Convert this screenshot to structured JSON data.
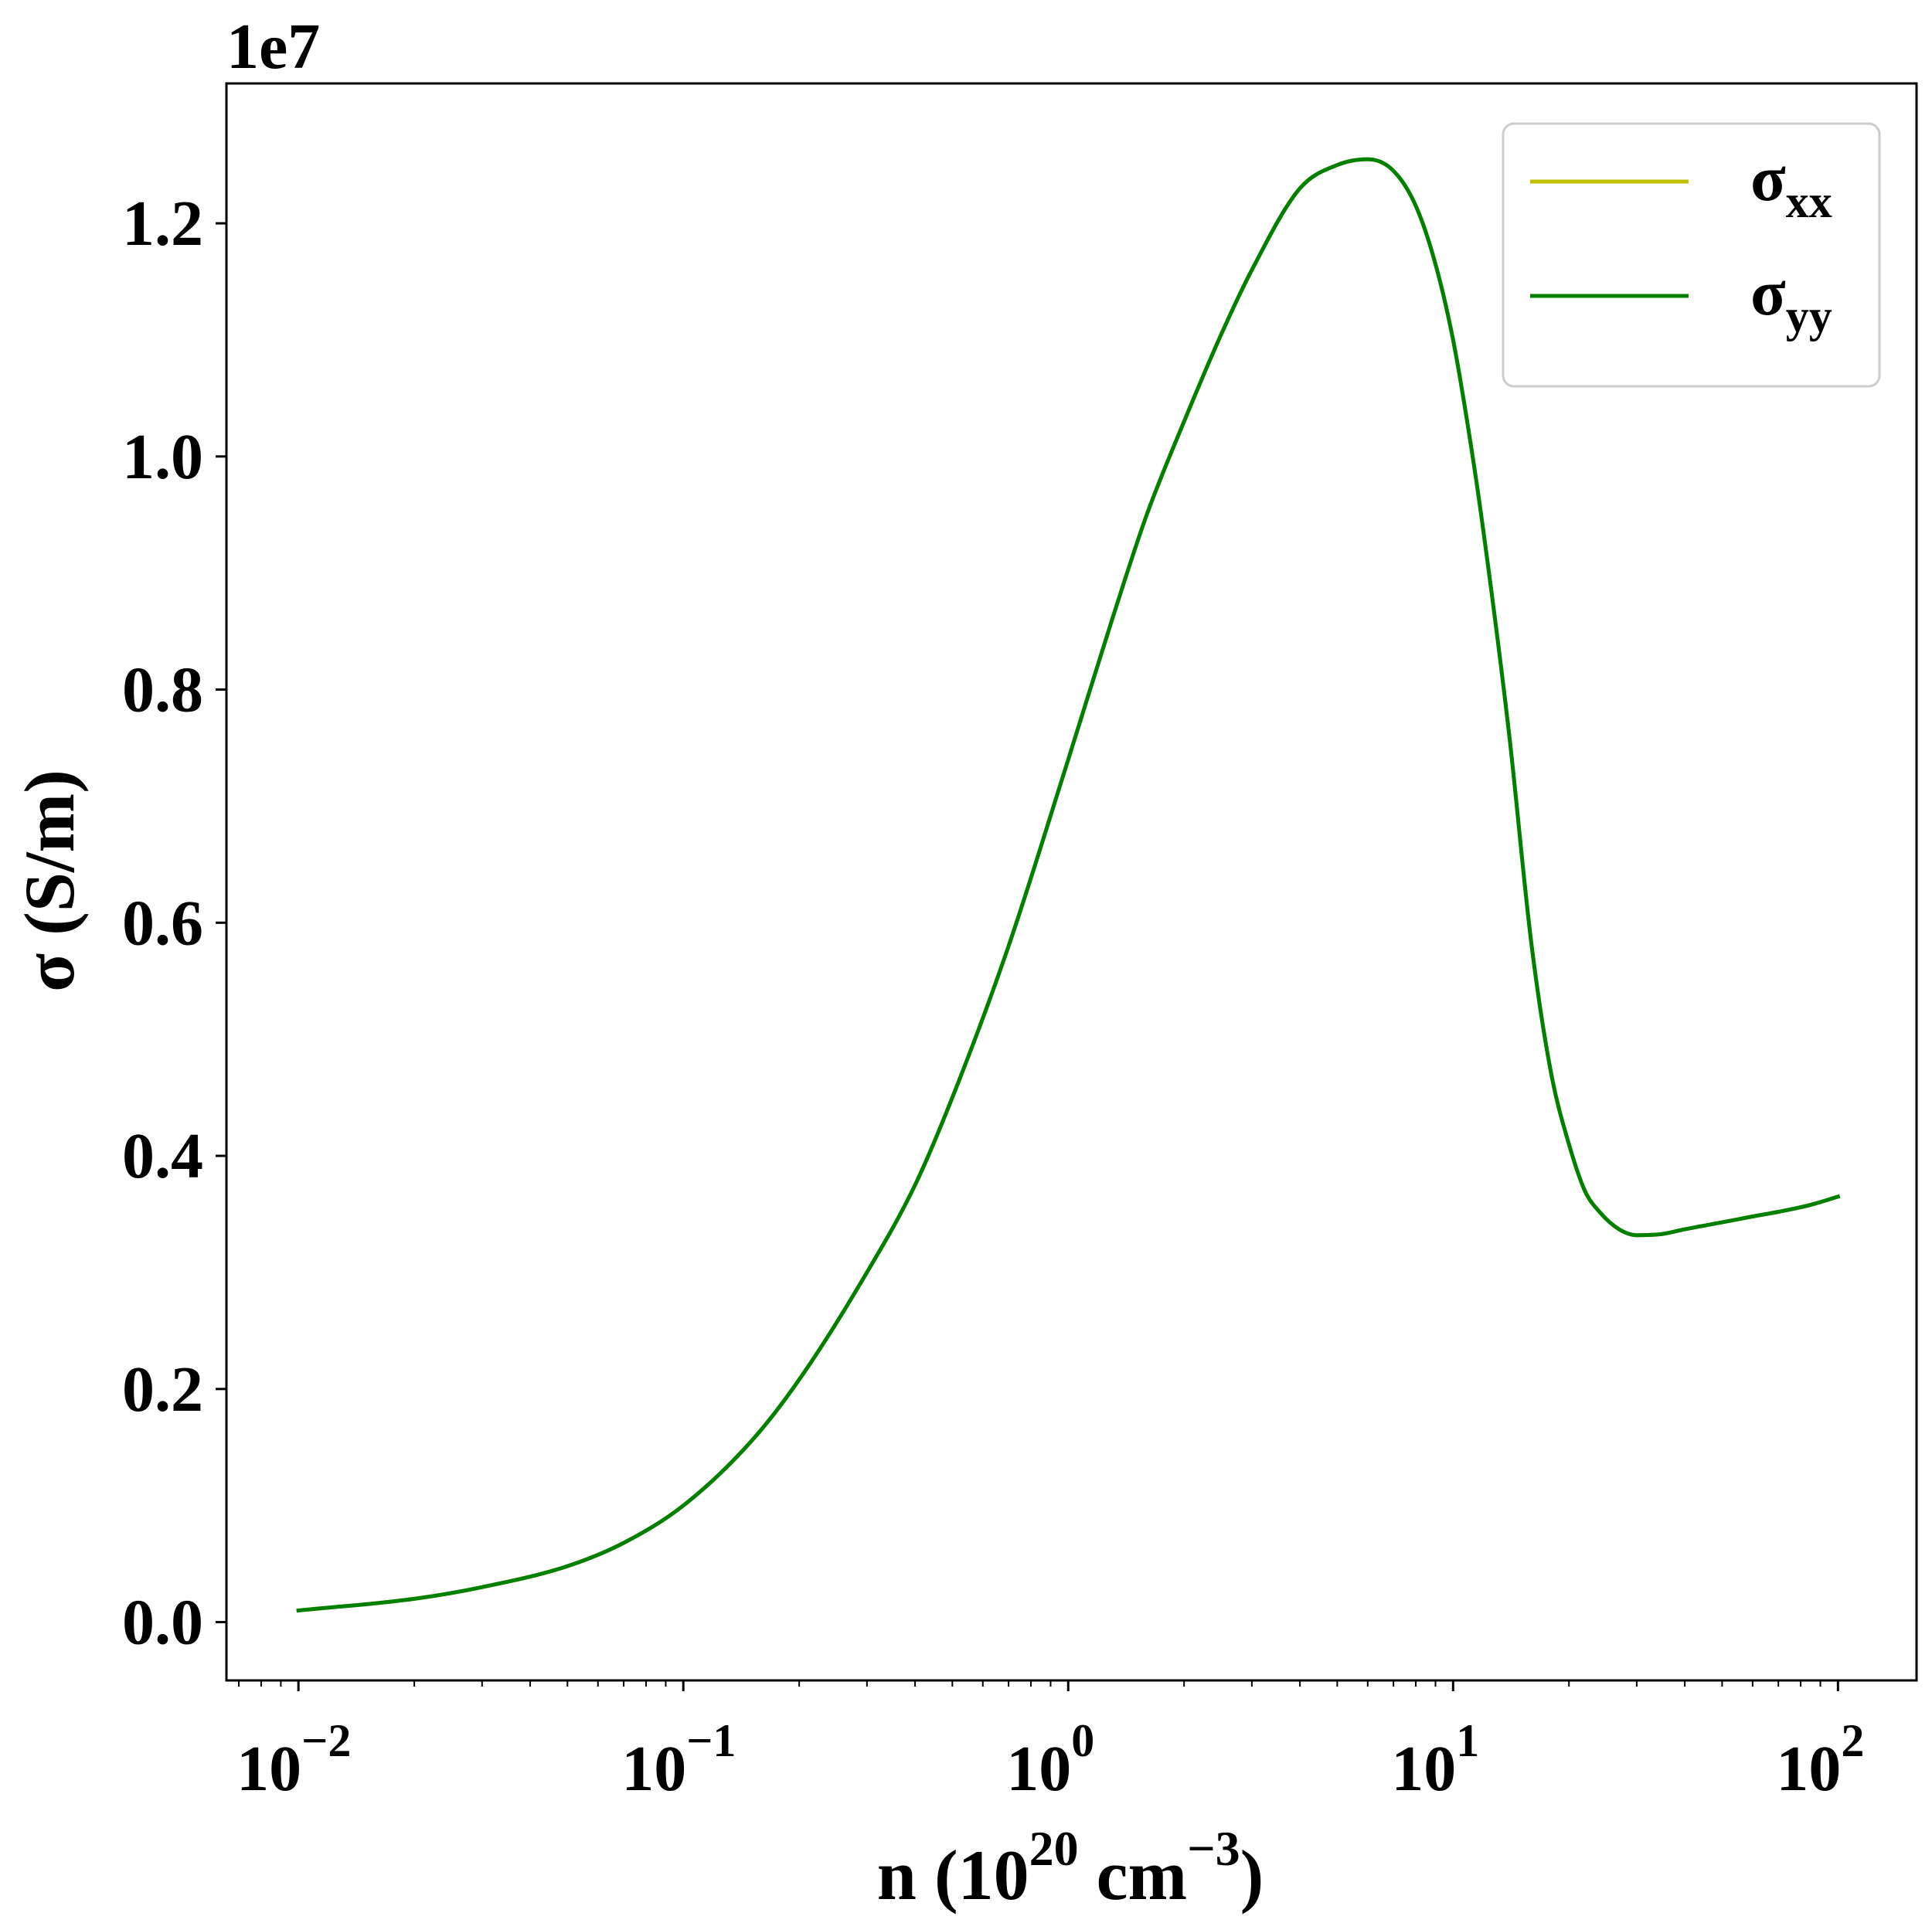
{
  "chart_data": {
    "type": "line",
    "title": "",
    "xlabel": "n (10",
    "xlabel_sup1": "20",
    "xlabel_mid": " cm",
    "xlabel_sup2": "−3",
    "xlabel_end": ")",
    "ylabel": "σ (S/m)",
    "y_offset_label": "1e7",
    "x_scale": "log",
    "xlim": [
      0.0065,
      160
    ],
    "ylim": [
      -0.05,
      1.32
    ],
    "y_scale_factor": 10000000,
    "y_ticks": [
      0.0,
      0.2,
      0.4,
      0.6,
      0.8,
      1.0,
      1.2
    ],
    "y_tick_labels": [
      "0.0",
      "0.2",
      "0.4",
      "0.6",
      "0.8",
      "1.0",
      "1.2"
    ],
    "x_ticks": [
      0.01,
      0.1,
      1,
      10,
      100
    ],
    "x_tick_labels": [
      {
        "base": "10",
        "exp": "−2"
      },
      {
        "base": "10",
        "exp": "−1"
      },
      {
        "base": "10",
        "exp": "0"
      },
      {
        "base": "10",
        "exp": "1"
      },
      {
        "base": "10",
        "exp": "2"
      }
    ],
    "grid": false,
    "legend_position": "top-right",
    "series": [
      {
        "name": "σxx",
        "legend_label": {
          "main": "σ",
          "sub": "xx"
        },
        "color": "#bfbf00",
        "x": [
          0.01,
          0.02,
          0.03,
          0.05,
          0.07,
          0.1,
          0.15,
          0.2,
          0.3,
          0.4,
          0.5,
          0.7,
          1.0,
          1.3,
          1.6,
          2.0,
          2.5,
          3.0,
          4.0,
          5.0,
          6.0,
          7.0,
          8.0,
          9.0,
          10.0,
          11.0,
          12.0,
          14.0,
          16.0,
          18.0,
          20.0,
          22.0,
          24.0,
          27.0,
          30.0,
          35.0,
          40.0,
          50.0,
          60.0,
          70.0,
          85.0,
          100.0
        ],
        "y": [
          0.01,
          0.02,
          0.03,
          0.048,
          0.068,
          0.1,
          0.155,
          0.208,
          0.3,
          0.375,
          0.45,
          0.58,
          0.74,
          0.86,
          0.95,
          1.03,
          1.105,
          1.16,
          1.23,
          1.25,
          1.255,
          1.245,
          1.215,
          1.165,
          1.1,
          1.02,
          0.935,
          0.76,
          0.58,
          0.47,
          0.41,
          0.37,
          0.352,
          0.337,
          0.332,
          0.333,
          0.337,
          0.343,
          0.348,
          0.352,
          0.358,
          0.365
        ]
      },
      {
        "name": "σyy",
        "legend_label": {
          "main": "σ",
          "sub": "yy"
        },
        "color": "#008000",
        "x": [
          0.01,
          0.02,
          0.03,
          0.05,
          0.07,
          0.1,
          0.15,
          0.2,
          0.3,
          0.4,
          0.5,
          0.7,
          1.0,
          1.3,
          1.6,
          2.0,
          2.5,
          3.0,
          4.0,
          5.0,
          6.0,
          7.0,
          8.0,
          9.0,
          10.0,
          11.0,
          12.0,
          14.0,
          16.0,
          18.0,
          20.0,
          22.0,
          24.0,
          27.0,
          30.0,
          35.0,
          40.0,
          50.0,
          60.0,
          70.0,
          85.0,
          100.0
        ],
        "y": [
          0.01,
          0.02,
          0.03,
          0.048,
          0.068,
          0.1,
          0.155,
          0.208,
          0.3,
          0.375,
          0.45,
          0.58,
          0.74,
          0.86,
          0.95,
          1.03,
          1.105,
          1.16,
          1.23,
          1.25,
          1.255,
          1.245,
          1.215,
          1.165,
          1.1,
          1.02,
          0.935,
          0.76,
          0.58,
          0.47,
          0.41,
          0.37,
          0.352,
          0.337,
          0.332,
          0.333,
          0.337,
          0.343,
          0.348,
          0.352,
          0.358,
          0.365
        ]
      }
    ]
  }
}
